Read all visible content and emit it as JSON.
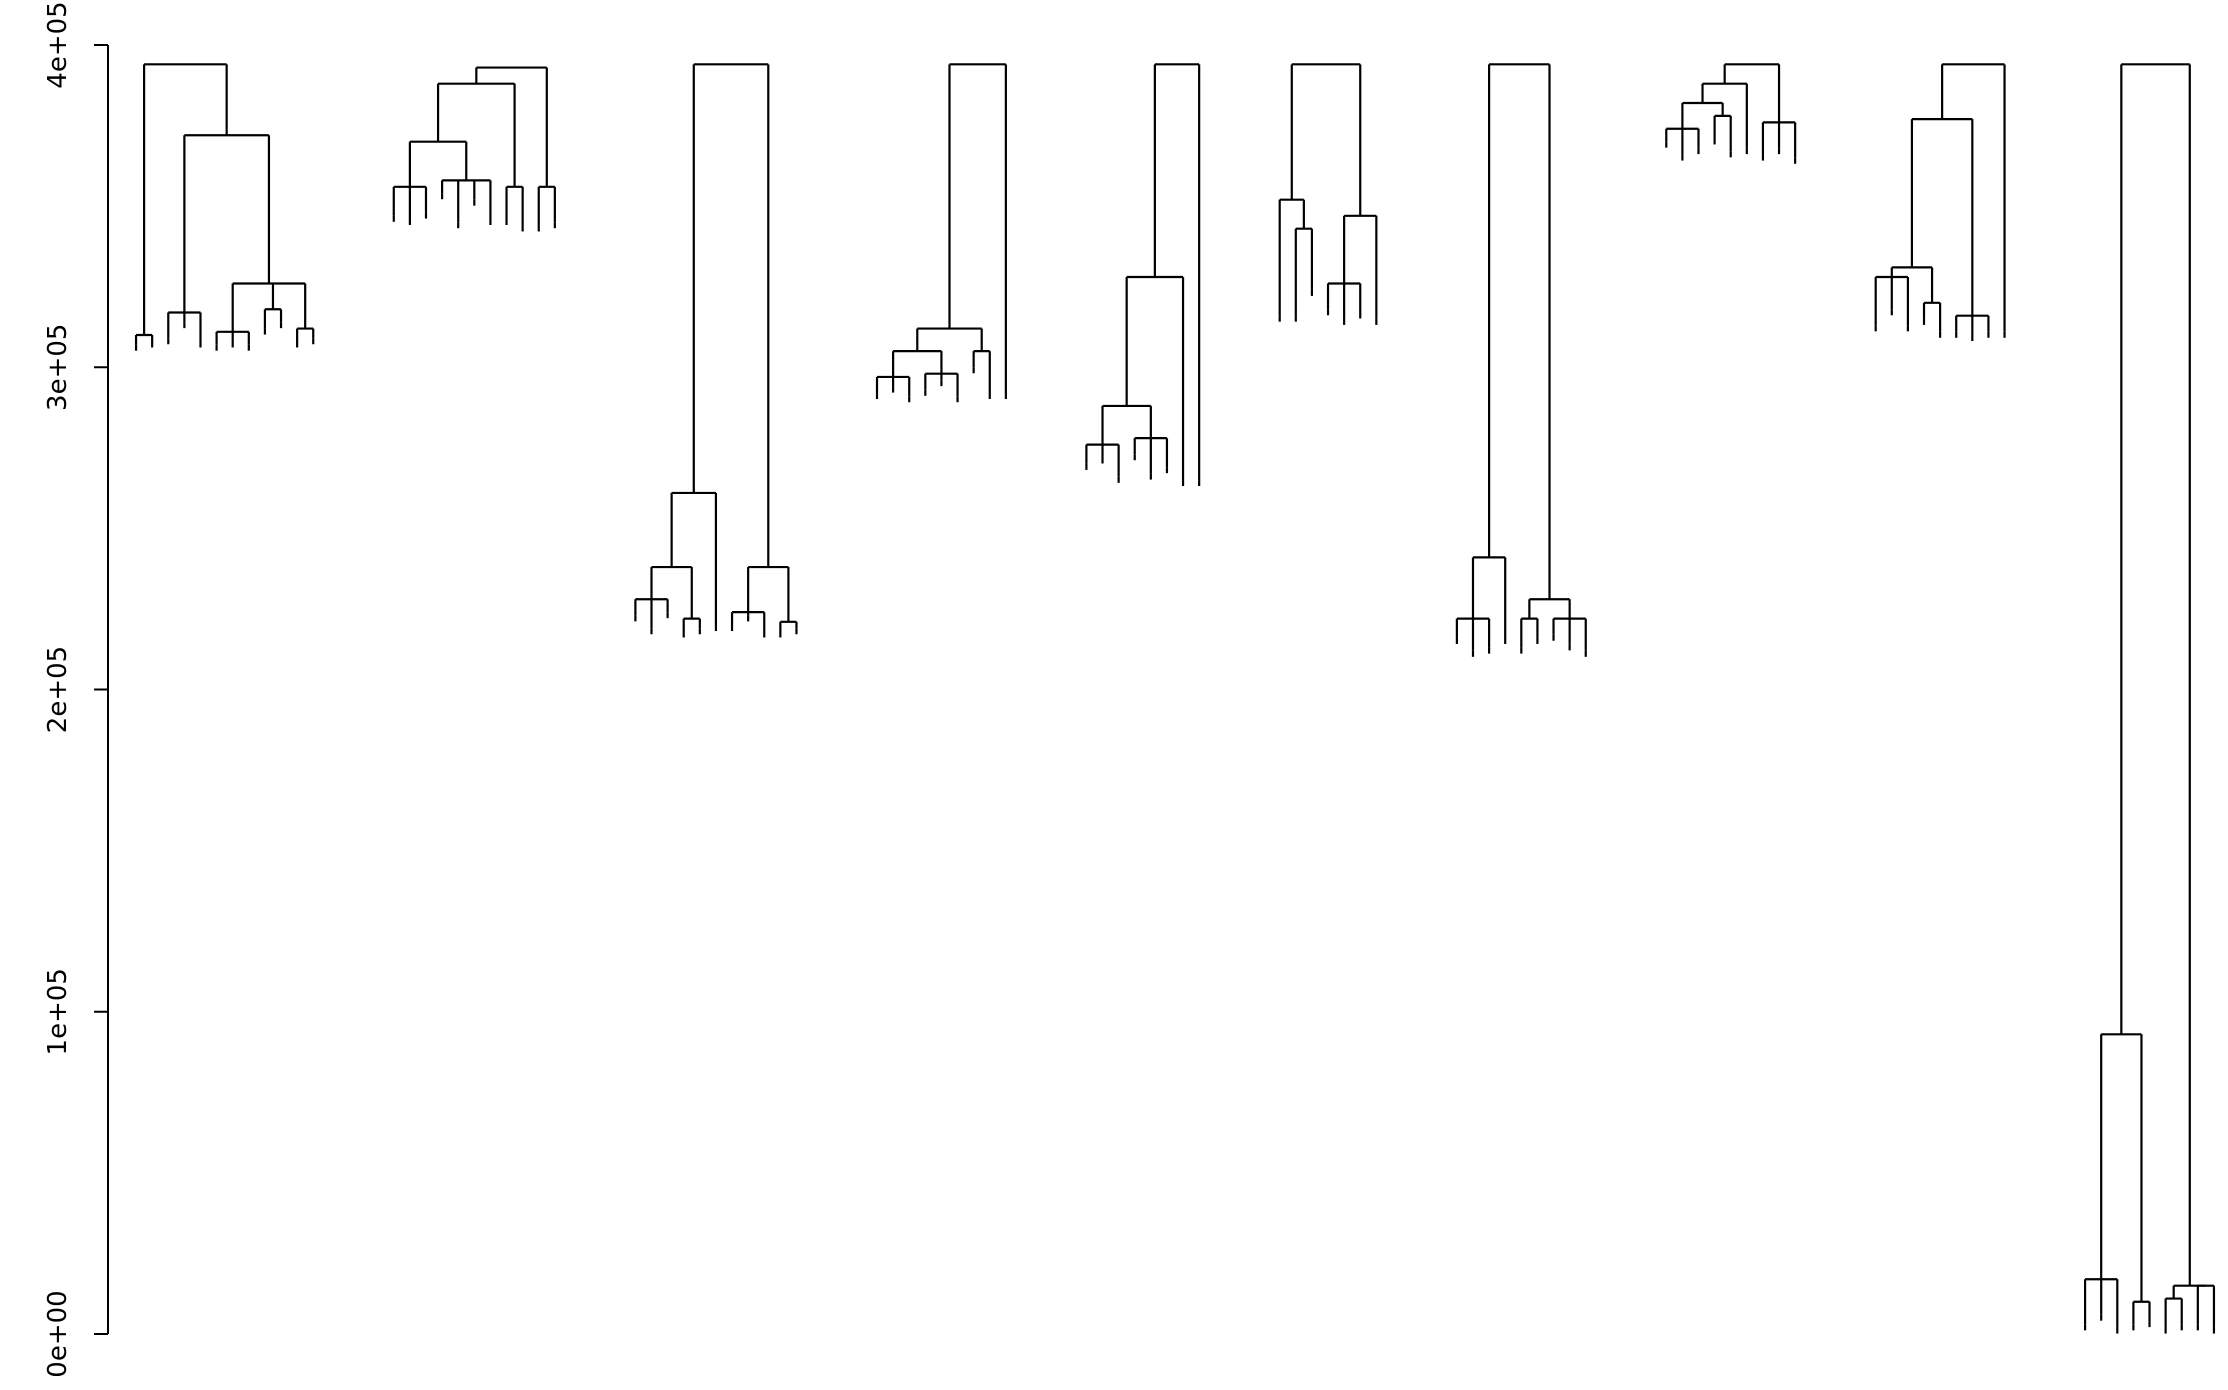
{
  "chart_data": {
    "type": "dendrogram",
    "title": "",
    "xlabel": "",
    "ylabel": "",
    "ylim": [
      0,
      400000
    ],
    "y_ticks": [
      0,
      100000,
      200000,
      300000,
      400000
    ],
    "y_tick_labels": [
      "0e+00",
      "1e+05",
      "2e+05",
      "3e+05",
      "4e+05"
    ],
    "clusters": [
      {
        "x_range": [
          0,
          13
        ],
        "root": {
          "h": 394000,
          "children": [
            {
              "h": 310000,
              "children": [
                {
                  "h": 307000
                },
                {
                  "h": 308000
                }
              ]
            },
            {
              "h": 372000,
              "children": [
                {
                  "h": 317000,
                  "children": [
                    {
                      "h": 309000
                    },
                    {
                      "h": 314000
                    },
                    {
                      "h": 308000
                    }
                  ]
                },
                {
                  "h": 326000,
                  "children": [
                    {
                      "h": 311000,
                      "children": [
                        {
                          "h": 307000
                        },
                        {
                          "h": 308000
                        },
                        {
                          "h": 307000
                        }
                      ]
                    },
                    {
                      "h": 318000,
                      "children": [
                        {
                          "h": 312000
                        },
                        {
                          "h": 314000
                        }
                      ]
                    },
                    {
                      "h": 312000,
                      "children": [
                        {
                          "h": 308000
                        },
                        {
                          "h": 309000
                        }
                      ]
                    }
                  ]
                }
              ]
            }
          ]
        }
      },
      {
        "x_range": [
          0,
          13
        ],
        "root": {
          "h": 393000,
          "children": [
            {
              "h": 388000,
              "children": [
                {
                  "h": 370000,
                  "children": [
                    {
                      "h": 356000,
                      "children": [
                        {
                          "h": 347000
                        },
                        {
                          "h": 346000
                        },
                        {
                          "h": 348000
                        }
                      ]
                    },
                    {
                      "h": 358000,
                      "children": [
                        {
                          "h": 354000
                        },
                        {
                          "h": 345000
                        },
                        {
                          "h": 352000
                        },
                        {
                          "h": 346000
                        }
                      ]
                    }
                  ]
                },
                {
                  "h": 356000,
                  "children": [
                    {
                      "h": 346000
                    },
                    {
                      "h": 344000
                    }
                  ]
                }
              ]
            },
            {
              "h": 356000,
              "children": [
                {
                  "h": 344000
                },
                {
                  "h": 345000
                }
              ]
            }
          ]
        }
      },
      {
        "x_range": [
          0,
          13
        ],
        "root": {
          "h": 394000,
          "children": [
            {
              "h": 261000,
              "children": [
                {
                  "h": 238000,
                  "children": [
                    {
                      "h": 228000,
                      "children": [
                        {
                          "h": 223000
                        },
                        {
                          "h": 219000
                        },
                        {
                          "h": 224000
                        }
                      ]
                    },
                    {
                      "h": 222000,
                      "children": [
                        {
                          "h": 218000
                        },
                        {
                          "h": 219000
                        }
                      ]
                    }
                  ]
                },
                {
                  "h": 220000
                }
              ]
            },
            {
              "h": 238000,
              "children": [
                {
                  "h": 224000,
                  "children": [
                    {
                      "h": 220000
                    },
                    {
                      "h": 223000
                    },
                    {
                      "h": 218000
                    }
                  ]
                },
                {
                  "h": 221000,
                  "children": [
                    {
                      "h": 218000
                    },
                    {
                      "h": 219000
                    }
                  ]
                }
              ]
            }
          ]
        }
      },
      {
        "x_range": [
          0,
          13
        ],
        "root": {
          "h": 394000,
          "children": [
            {
              "h": 312000,
              "children": [
                {
                  "h": 305000,
                  "children": [
                    {
                      "h": 297000,
                      "children": [
                        {
                          "h": 292000
                        },
                        {
                          "h": 294000
                        },
                        {
                          "h": 291000
                        }
                      ]
                    },
                    {
                      "h": 298000,
                      "children": [
                        {
                          "h": 293000
                        },
                        {
                          "h": 296000
                        },
                        {
                          "h": 291000
                        }
                      ]
                    }
                  ]
                },
                {
                  "h": 305000,
                  "children": [
                    {
                      "h": 300000
                    },
                    {
                      "h": 292000
                    }
                  ]
                }
              ]
            },
            {
              "h": 292000
            }
          ]
        }
      },
      {
        "x_range": [
          0,
          13
        ],
        "root": {
          "h": 394000,
          "children": [
            {
              "h": 328000,
              "children": [
                {
                  "h": 288000,
                  "children": [
                    {
                      "h": 276000,
                      "children": [
                        {
                          "h": 270000
                        },
                        {
                          "h": 272000
                        },
                        {
                          "h": 266000
                        }
                      ]
                    },
                    {
                      "h": 278000,
                      "children": [
                        {
                          "h": 273000
                        },
                        {
                          "h": 267000
                        },
                        {
                          "h": 269000
                        }
                      ]
                    }
                  ]
                },
                {
                  "h": 265000
                }
              ]
            },
            {
              "h": 265000
            }
          ]
        }
      },
      {
        "x_range": [
          0,
          13
        ],
        "root": {
          "h": 394000,
          "children": [
            {
              "h": 352000,
              "children": [
                {
                  "h": 316000
                },
                {
                  "h": 343000,
                  "children": [
                    {
                      "h": 316000
                    },
                    {
                      "h": 324000
                    }
                  ]
                }
              ]
            },
            {
              "h": 347000,
              "children": [
                {
                  "h": 326000,
                  "children": [
                    {
                      "h": 318000
                    },
                    {
                      "h": 315000
                    },
                    {
                      "h": 317000
                    }
                  ]
                },
                {
                  "h": 315000
                }
              ]
            }
          ]
        }
      },
      {
        "x_range": [
          0,
          13
        ],
        "root": {
          "h": 394000,
          "children": [
            {
              "h": 241000,
              "children": [
                {
                  "h": 222000,
                  "children": [
                    {
                      "h": 216000
                    },
                    {
                      "h": 212000
                    },
                    {
                      "h": 213000
                    }
                  ]
                },
                {
                  "h": 216000
                }
              ]
            },
            {
              "h": 228000,
              "children": [
                {
                  "h": 222000,
                  "children": [
                    {
                      "h": 213000
                    },
                    {
                      "h": 216000
                    }
                  ]
                },
                {
                  "h": 222000,
                  "children": [
                    {
                      "h": 217000
                    },
                    {
                      "h": 214000
                    },
                    {
                      "h": 212000
                    }
                  ]
                }
              ]
            }
          ]
        }
      },
      {
        "x_range": [
          0,
          13
        ],
        "root": {
          "h": 394000,
          "children": [
            {
              "h": 388000,
              "children": [
                {
                  "h": 382000,
                  "children": [
                    {
                      "h": 374000,
                      "children": [
                        {
                          "h": 370000
                        },
                        {
                          "h": 366000
                        },
                        {
                          "h": 368000
                        }
                      ]
                    },
                    {
                      "h": 378000,
                      "children": [
                        {
                          "h": 371000
                        },
                        {
                          "h": 367000
                        }
                      ]
                    }
                  ]
                },
                {
                  "h": 368000
                }
              ]
            },
            {
              "h": 376000,
              "children": [
                {
                  "h": 366000
                },
                {
                  "h": 368000
                },
                {
                  "h": 365000
                }
              ]
            }
          ]
        }
      },
      {
        "x_range": [
          0,
          13
        ],
        "root": {
          "h": 394000,
          "children": [
            {
              "h": 377000,
              "children": [
                {
                  "h": 331000,
                  "children": [
                    {
                      "h": 328000,
                      "children": [
                        {
                          "h": 313000
                        },
                        {
                          "h": 318000
                        },
                        {
                          "h": 313000
                        }
                      ]
                    },
                    {
                      "h": 320000,
                      "children": [
                        {
                          "h": 315000
                        },
                        {
                          "h": 311000
                        }
                      ]
                    }
                  ]
                },
                {
                  "h": 316000,
                  "children": [
                    {
                      "h": 311000
                    },
                    {
                      "h": 310000
                    },
                    {
                      "h": 311000
                    }
                  ]
                }
              ]
            },
            {
              "h": 311000
            }
          ]
        }
      },
      {
        "x_range": [
          0,
          13
        ],
        "root": {
          "h": 394000,
          "children": [
            {
              "h": 93000,
              "children": [
                {
                  "h": 17000,
                  "children": [
                    {
                      "h": 3000
                    },
                    {
                      "h": 6000
                    },
                    {
                      "h": 2000
                    }
                  ]
                },
                {
                  "h": 10000,
                  "children": [
                    {
                      "h": 3000
                    },
                    {
                      "h": 4000
                    }
                  ]
                }
              ]
            },
            {
              "h": 15000,
              "children": [
                {
                  "h": 11000,
                  "children": [
                    {
                      "h": 2000
                    },
                    {
                      "h": 3000
                    }
                  ]
                },
                {
                  "h": 15000,
                  "children": [
                    {
                      "h": 3000
                    },
                    {
                      "h": 2000
                    }
                  ]
                }
              ]
            }
          ]
        }
      }
    ]
  }
}
